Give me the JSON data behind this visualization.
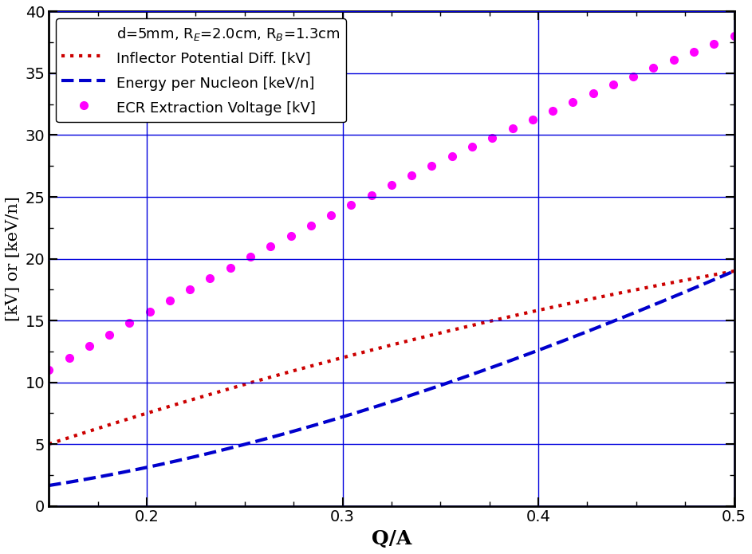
{
  "xlabel": "Q/A",
  "ylabel": "[kV] or [keV/n]",
  "xlim": [
    0.15,
    0.5
  ],
  "ylim": [
    0,
    40
  ],
  "xticks": [
    0.2,
    0.3,
    0.4,
    0.5
  ],
  "yticks": [
    0,
    5,
    10,
    15,
    20,
    25,
    30,
    35,
    40
  ],
  "grid_color": "#0000dd",
  "ecr_color": "#ff00ff",
  "inflector_color": "#cc0000",
  "energy_color": "#0000cc",
  "ecr_coeff": 76.0,
  "inflector_coeff": 38.0,
  "energy_coeff": 76.0,
  "legend_line1": "d=5mm, R$_E$=2.0cm, R$_B$=1.3cm",
  "inflector_label": "Inflector Potential Diff. [kV]",
  "energy_label": "Energy per Nucleon [keV/n]",
  "ecr_label": "ECR Extraction Voltage [kV]",
  "n_dots": 35,
  "figsize": [
    9.43,
    6.95
  ],
  "dpi": 100
}
